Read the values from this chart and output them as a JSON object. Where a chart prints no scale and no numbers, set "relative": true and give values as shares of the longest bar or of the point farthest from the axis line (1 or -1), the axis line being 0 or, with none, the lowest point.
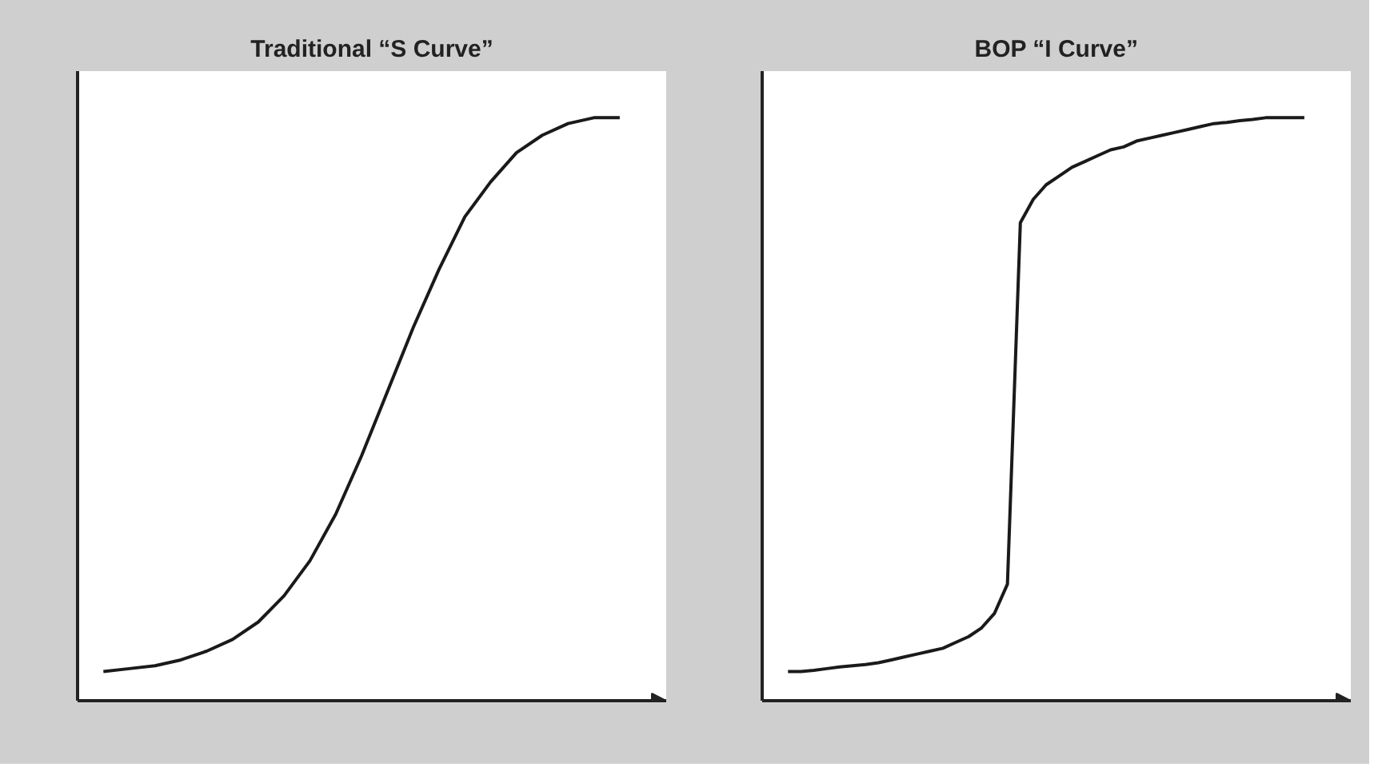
{
  "chart_data": [
    {
      "type": "line",
      "title": "Traditional “S Curve”",
      "relative": true,
      "color": "#1a1a1a",
      "categories": [
        null,
        null,
        null,
        null,
        null,
        null,
        null,
        null,
        null,
        null,
        null,
        null,
        null,
        null,
        null,
        null,
        null,
        null,
        null,
        null,
        null
      ],
      "values": [
        0.05,
        0.055,
        0.06,
        0.07,
        0.085,
        0.105,
        0.135,
        0.18,
        0.24,
        0.32,
        0.42,
        0.53,
        0.64,
        0.74,
        0.83,
        0.89,
        0.94,
        0.97,
        0.99,
        1.0,
        1.0
      ]
    },
    {
      "type": "line",
      "title": "BOP “I Curve”",
      "relative": true,
      "color": "#1a1a1a",
      "categories": [
        null,
        null,
        null,
        null,
        null,
        null,
        null,
        null,
        null,
        null,
        null,
        null,
        null,
        null,
        null,
        null,
        null,
        null,
        null,
        null,
        null,
        null,
        null,
        null,
        null,
        null,
        null,
        null,
        null,
        null,
        null,
        null,
        null,
        null,
        null,
        null,
        null,
        null,
        null,
        null,
        null
      ],
      "values": [
        0.05,
        0.05,
        0.052,
        0.055,
        0.058,
        0.06,
        0.062,
        0.065,
        0.07,
        0.075,
        0.08,
        0.085,
        0.09,
        0.1,
        0.11,
        0.125,
        0.15,
        0.2,
        0.82,
        0.86,
        0.885,
        0.9,
        0.915,
        0.925,
        0.935,
        0.945,
        0.95,
        0.96,
        0.965,
        0.97,
        0.975,
        0.98,
        0.985,
        0.99,
        0.992,
        0.995,
        0.997,
        1,
        1,
        1,
        1
      ]
    }
  ]
}
